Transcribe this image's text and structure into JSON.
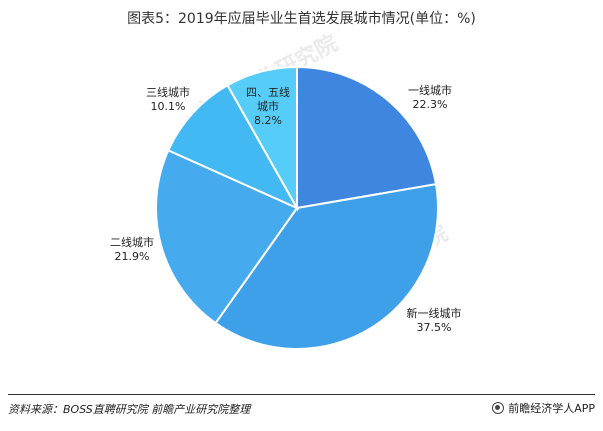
{
  "title": "图表5：2019年应届毕业生首选发展城市情况(单位：%)",
  "source": "资料来源：BOSS直聘研究院 前瞻产业研究院整理",
  "brand": "前瞻经济学人APP",
  "watermark": "前瞻产业研究院",
  "chart_data": {
    "type": "pie",
    "title": "图表5：2019年应届毕业生首选发展城市情况(单位：%)",
    "unit": "%",
    "start_angle_deg": 0,
    "direction": "clockwise",
    "slices": [
      {
        "label": "一线城市",
        "value": 22.3,
        "value_label": "22.3%",
        "color": "#3f86e0"
      },
      {
        "label": "新一线城市",
        "value": 37.5,
        "value_label": "37.5%",
        "color": "#3fa0ea"
      },
      {
        "label": "二线城市",
        "value": 21.9,
        "value_label": "21.9%",
        "color": "#45aaee"
      },
      {
        "label": "三线城市",
        "value": 10.1,
        "value_label": "10.1%",
        "color": "#43b9f3"
      },
      {
        "label": "四、五线城市",
        "value": 8.2,
        "value_label": "8.2%",
        "color": "#56cdf8"
      }
    ]
  }
}
